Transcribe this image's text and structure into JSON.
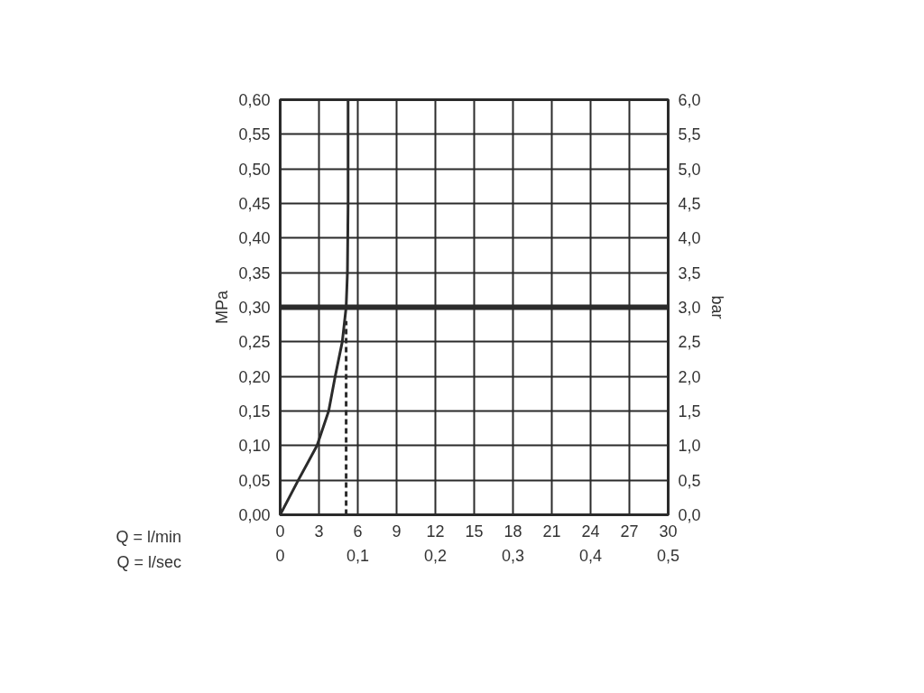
{
  "chart_data": {
    "type": "line",
    "xlabel": "Q = l/min",
    "ylabel": "MPa",
    "y2label": "bar",
    "x2label": "Q = l/sec",
    "xlim": [
      0,
      30
    ],
    "xticks": [
      0,
      3,
      6,
      9,
      12,
      15,
      18,
      21,
      24,
      27,
      30
    ],
    "x2lim": [
      0,
      0.5
    ],
    "x2ticks": [
      0,
      {
        "value": 0.1,
        "label": "0,1"
      },
      {
        "value": 0.2,
        "label": "0,2"
      },
      {
        "value": 0.3,
        "label": "0,3"
      },
      {
        "value": 0.4,
        "label": "0,4"
      },
      {
        "value": 0.5,
        "label": "0,5"
      }
    ],
    "ylim": [
      0,
      0.6
    ],
    "yticks": [
      {
        "value": 0,
        "label": "0,00"
      },
      {
        "value": 0.05,
        "label": "0,05"
      },
      {
        "value": 0.1,
        "label": "0,10"
      },
      {
        "value": 0.15,
        "label": "0,15"
      },
      {
        "value": 0.2,
        "label": "0,20"
      },
      {
        "value": 0.25,
        "label": "0,25"
      },
      {
        "value": 0.3,
        "label": "0,30"
      },
      {
        "value": 0.35,
        "label": "0,35"
      },
      {
        "value": 0.4,
        "label": "0,40"
      },
      {
        "value": 0.45,
        "label": "0,45"
      },
      {
        "value": 0.5,
        "label": "0,50"
      },
      {
        "value": 0.55,
        "label": "0,55"
      },
      {
        "value": 0.6,
        "label": "0,60"
      }
    ],
    "y2lim": [
      0,
      6
    ],
    "y2ticks": [
      {
        "value": 0,
        "label": "0,0"
      },
      {
        "value": 0.5,
        "label": "0,5"
      },
      {
        "value": 1,
        "label": "1,0"
      },
      {
        "value": 1.5,
        "label": "1,5"
      },
      {
        "value": 2,
        "label": "2,0"
      },
      {
        "value": 2.5,
        "label": "2,5"
      },
      {
        "value": 3,
        "label": "3,0"
      },
      {
        "value": 3.5,
        "label": "3,5"
      },
      {
        "value": 4,
        "label": "4,0"
      },
      {
        "value": 4.5,
        "label": "4,5"
      },
      {
        "value": 5,
        "label": "5,0"
      },
      {
        "value": 5.5,
        "label": "5,5"
      },
      {
        "value": 6,
        "label": "6,0"
      }
    ],
    "grid": true,
    "series": [
      {
        "color": "#2b2b2b",
        "x": [
          0,
          1.4,
          2.85,
          3.75,
          4.25,
          4.8,
          5.1,
          5.2,
          5.25,
          5.25
        ],
        "values": [
          0,
          0.05,
          0.1,
          0.15,
          0.2,
          0.25,
          0.3,
          0.35,
          0.45,
          0.6
        ]
      },
      {
        "color": "#2b2b2b",
        "line_style": "dashed",
        "x": [
          5.1,
          5.1
        ],
        "values": [
          0,
          0.28
        ]
      }
    ],
    "ref_lines": [
      {
        "axis": "y",
        "value": 0.3,
        "color": "#2b2b2b"
      }
    ]
  }
}
